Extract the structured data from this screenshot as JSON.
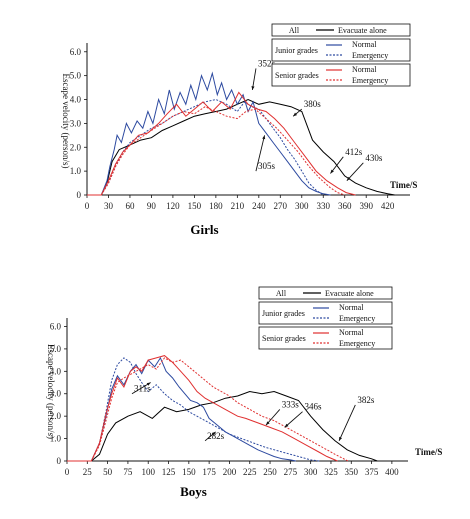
{
  "chart_data": [
    {
      "type": "line",
      "title": "Girls",
      "xlabel": "Time/S",
      "ylabel": "Escape velocity (person/s)",
      "xlim": [
        0,
        440
      ],
      "ylim": [
        0,
        6.2
      ],
      "xticks": [
        0,
        30,
        60,
        90,
        120,
        150,
        180,
        210,
        240,
        270,
        300,
        330,
        360,
        390,
        420
      ],
      "yticks": [
        "0",
        "1.0",
        "2.0",
        "3.0",
        "4.0",
        "5.0",
        "6.0"
      ],
      "yticks_vals": [
        0,
        1,
        2,
        3,
        4,
        5,
        6
      ],
      "legend": {
        "all_label": "All",
        "all_series": "Evacuate alone",
        "group1": "Junior grades",
        "group2": "Senior grades",
        "normal": "Normal",
        "emergency": "Emergency"
      },
      "series": [
        {
          "name": "All - Evacuate alone",
          "color": "#000000",
          "dash": "",
          "x": [
            0,
            20,
            28,
            35,
            45,
            60,
            75,
            90,
            105,
            120,
            135,
            150,
            165,
            180,
            195,
            210,
            225,
            240,
            255,
            270,
            285,
            300,
            315,
            330,
            345,
            360,
            375,
            390,
            405,
            420,
            430
          ],
          "y": [
            0,
            0,
            0.5,
            1.4,
            1.9,
            2.1,
            2.3,
            2.4,
            2.7,
            2.9,
            3.1,
            3.3,
            3.4,
            3.5,
            3.6,
            3.8,
            4.0,
            3.8,
            3.9,
            3.8,
            3.7,
            3.5,
            2.3,
            1.8,
            1.4,
            0.8,
            0.5,
            0.3,
            0.15,
            0.05,
            0
          ]
        },
        {
          "name": "Junior grades - Normal",
          "color": "#2d4aa0",
          "dash": "",
          "x": [
            0,
            20,
            28,
            32,
            38,
            42,
            48,
            55,
            62,
            70,
            78,
            85,
            92,
            100,
            108,
            115,
            122,
            130,
            138,
            145,
            152,
            160,
            168,
            175,
            182,
            188,
            195,
            202,
            210,
            218,
            225,
            232,
            240,
            250,
            260,
            270,
            280,
            290,
            300,
            310,
            320,
            330,
            340
          ],
          "y": [
            0,
            0,
            0.6,
            1.2,
            1.9,
            2.5,
            2.2,
            3.0,
            2.6,
            3.1,
            2.8,
            3.5,
            3.0,
            4.0,
            3.4,
            4.4,
            3.6,
            4.3,
            3.8,
            4.6,
            4.0,
            5.0,
            4.4,
            5.1,
            4.2,
            4.7,
            4.0,
            4.4,
            3.8,
            4.2,
            3.5,
            3.9,
            3.0,
            2.6,
            2.2,
            1.8,
            1.4,
            1.0,
            0.6,
            0.3,
            0.15,
            0.05,
            0
          ]
        },
        {
          "name": "Junior grades - Emergency",
          "color": "#2d4aa0",
          "dash": "2,1.5",
          "x": [
            0,
            20,
            30,
            40,
            50,
            60,
            75,
            90,
            105,
            120,
            135,
            150,
            165,
            180,
            195,
            210,
            220,
            230,
            240,
            250,
            260,
            270,
            280,
            290,
            300,
            310,
            320,
            330
          ],
          "y": [
            0,
            0,
            0.5,
            1.2,
            1.8,
            2.2,
            2.5,
            2.8,
            3.0,
            3.3,
            3.5,
            3.7,
            3.9,
            4.0,
            3.8,
            3.5,
            3.9,
            3.7,
            3.6,
            3.2,
            2.8,
            2.4,
            1.9,
            1.5,
            1.0,
            0.5,
            0.2,
            0
          ]
        },
        {
          "name": "Senior grades - Normal",
          "color": "#e03030",
          "dash": "",
          "x": [
            0,
            20,
            30,
            40,
            50,
            60,
            72,
            85,
            100,
            112,
            125,
            138,
            150,
            162,
            175,
            188,
            200,
            212,
            225,
            238,
            250,
            262,
            275,
            290,
            305,
            320,
            335,
            350,
            362,
            375
          ],
          "y": [
            0,
            0,
            0.6,
            1.3,
            1.8,
            2.1,
            2.5,
            2.6,
            3.0,
            3.4,
            3.8,
            3.3,
            3.6,
            3.9,
            3.5,
            3.9,
            3.6,
            4.3,
            3.8,
            3.6,
            3.5,
            3.2,
            2.8,
            2.2,
            1.6,
            1.0,
            0.6,
            0.3,
            0.1,
            0
          ]
        },
        {
          "name": "Senior grades - Emergency",
          "color": "#e03030",
          "dash": "2,1.5",
          "x": [
            0,
            20,
            30,
            40,
            50,
            60,
            75,
            90,
            105,
            120,
            135,
            150,
            165,
            180,
            195,
            210,
            222,
            235,
            250,
            265,
            280,
            295,
            310,
            325,
            340,
            350,
            360
          ],
          "y": [
            0,
            0,
            0.5,
            1.2,
            1.7,
            2.1,
            2.4,
            2.7,
            3.0,
            3.3,
            3.5,
            3.4,
            3.7,
            3.5,
            3.3,
            3.2,
            3.5,
            3.6,
            3.2,
            2.8,
            2.3,
            1.8,
            1.2,
            0.7,
            0.3,
            0.1,
            0
          ]
        }
      ],
      "annotations": [
        {
          "text": "352s",
          "x": 231,
          "y": 4.4,
          "tx": 236,
          "ty": 5.3
        },
        {
          "text": "380s",
          "x": 288,
          "y": 3.3,
          "tx": 300,
          "ty": 3.6
        },
        {
          "text": "305s",
          "x": 248,
          "y": 2.5,
          "tx": 236,
          "ty": 1.0
        },
        {
          "text": "412s",
          "x": 340,
          "y": 0.9,
          "tx": 358,
          "ty": 1.6
        },
        {
          "text": "430s",
          "x": 363,
          "y": 0.6,
          "tx": 386,
          "ty": 1.35
        }
      ]
    },
    {
      "type": "line",
      "title": "Boys",
      "xlabel": "Time/S",
      "ylabel": "Escape velocity (person/s)",
      "xlim": [
        0,
        410
      ],
      "ylim": [
        0,
        6.2
      ],
      "xticks": [
        0,
        25,
        50,
        75,
        100,
        125,
        150,
        175,
        200,
        225,
        250,
        275,
        300,
        325,
        350,
        375,
        400
      ],
      "yticks": [
        "0",
        "1.0",
        "2.0",
        "3.0",
        "4.0",
        "5.0",
        "6.0"
      ],
      "yticks_vals": [
        0,
        1,
        2,
        3,
        4,
        5,
        6
      ],
      "legend": {
        "all_label": "All",
        "all_series": "Evacuate alone",
        "group1": "Junior grades",
        "group2": "Senior grades",
        "normal": "Normal",
        "emergency": "Emergency"
      },
      "series": [
        {
          "name": "All - Evacuate alone",
          "color": "#000000",
          "dash": "",
          "x": [
            0,
            30,
            40,
            50,
            60,
            75,
            90,
            105,
            120,
            135,
            150,
            165,
            180,
            195,
            210,
            225,
            240,
            255,
            270,
            285,
            300,
            315,
            330,
            345,
            360,
            375,
            382
          ],
          "y": [
            0,
            0,
            0.3,
            1.2,
            1.7,
            2.0,
            2.2,
            1.9,
            2.4,
            2.2,
            2.3,
            2.5,
            2.6,
            2.8,
            2.9,
            3.1,
            3.0,
            3.1,
            2.9,
            2.7,
            2.0,
            1.4,
            0.9,
            0.5,
            0.25,
            0.1,
            0
          ]
        },
        {
          "name": "Junior grades - Normal",
          "color": "#2d4aa0",
          "dash": "",
          "x": [
            0,
            30,
            40,
            48,
            55,
            62,
            70,
            78,
            85,
            92,
            100,
            108,
            115,
            122,
            130,
            138,
            145,
            152,
            160,
            168,
            175,
            185,
            195,
            205,
            215,
            225,
            235,
            245,
            255,
            265,
            275,
            282
          ],
          "y": [
            0,
            0,
            0.8,
            2.0,
            3.2,
            3.8,
            3.4,
            4.0,
            4.3,
            3.9,
            4.5,
            4.2,
            4.6,
            4.0,
            3.7,
            3.3,
            3.0,
            2.7,
            2.6,
            2.4,
            1.9,
            1.6,
            1.3,
            1.1,
            0.9,
            0.7,
            0.5,
            0.35,
            0.2,
            0.1,
            0.05,
            0
          ]
        },
        {
          "name": "Junior grades - Emergency",
          "color": "#2d4aa0",
          "dash": "2,1.5",
          "x": [
            0,
            30,
            40,
            48,
            55,
            62,
            70,
            78,
            85,
            92,
            100,
            110,
            120,
            130,
            140,
            150,
            160,
            170,
            180,
            190,
            200,
            215,
            230,
            245,
            260,
            275,
            290,
            300,
            311
          ],
          "y": [
            0,
            0,
            0.8,
            2.2,
            3.6,
            4.3,
            4.6,
            4.4,
            3.9,
            3.5,
            3.1,
            3.4,
            3.0,
            2.7,
            2.5,
            2.2,
            2.0,
            1.8,
            1.6,
            1.4,
            1.2,
            1.0,
            0.8,
            0.6,
            0.45,
            0.3,
            0.15,
            0.05,
            0
          ]
        },
        {
          "name": "Senior grades - Normal",
          "color": "#e03030",
          "dash": "",
          "x": [
            0,
            30,
            40,
            48,
            55,
            62,
            70,
            78,
            85,
            92,
            100,
            110,
            120,
            130,
            140,
            150,
            160,
            170,
            180,
            190,
            200,
            210,
            220,
            235,
            250,
            265,
            280,
            295,
            310,
            320,
            333
          ],
          "y": [
            0,
            0,
            0.8,
            2.1,
            3.0,
            3.7,
            3.3,
            4.0,
            4.2,
            4.0,
            4.5,
            4.6,
            4.7,
            4.4,
            4.0,
            3.6,
            3.1,
            2.8,
            2.6,
            2.4,
            2.2,
            2.0,
            1.9,
            1.7,
            1.5,
            1.3,
            1.0,
            0.7,
            0.4,
            0.2,
            0
          ]
        },
        {
          "name": "Senior grades - Emergency",
          "color": "#e03030",
          "dash": "2,1.5",
          "x": [
            0,
            30,
            40,
            48,
            55,
            62,
            70,
            80,
            90,
            100,
            110,
            120,
            130,
            140,
            150,
            160,
            170,
            180,
            190,
            200,
            210,
            225,
            240,
            255,
            270,
            285,
            300,
            315,
            330,
            346
          ],
          "y": [
            0,
            0,
            0.7,
            1.8,
            2.8,
            3.5,
            3.7,
            3.9,
            4.1,
            4.3,
            4.1,
            4.6,
            4.4,
            4.5,
            4.2,
            3.9,
            3.6,
            3.3,
            3.1,
            2.9,
            2.6,
            2.3,
            2.0,
            1.8,
            1.5,
            1.2,
            0.9,
            0.6,
            0.3,
            0
          ]
        }
      ],
      "annotations": [
        {
          "text": "311s",
          "x": 103,
          "y": 3.5,
          "tx": 80,
          "ty": 3.0
        },
        {
          "text": "282s",
          "x": 183,
          "y": 1.3,
          "tx": 170,
          "ty": 0.9
        },
        {
          "text": "333s",
          "x": 245,
          "y": 1.6,
          "tx": 262,
          "ty": 2.3
        },
        {
          "text": "346s",
          "x": 268,
          "y": 1.5,
          "tx": 290,
          "ty": 2.2
        },
        {
          "text": "382s",
          "x": 335,
          "y": 0.9,
          "tx": 355,
          "ty": 2.5
        }
      ]
    }
  ]
}
